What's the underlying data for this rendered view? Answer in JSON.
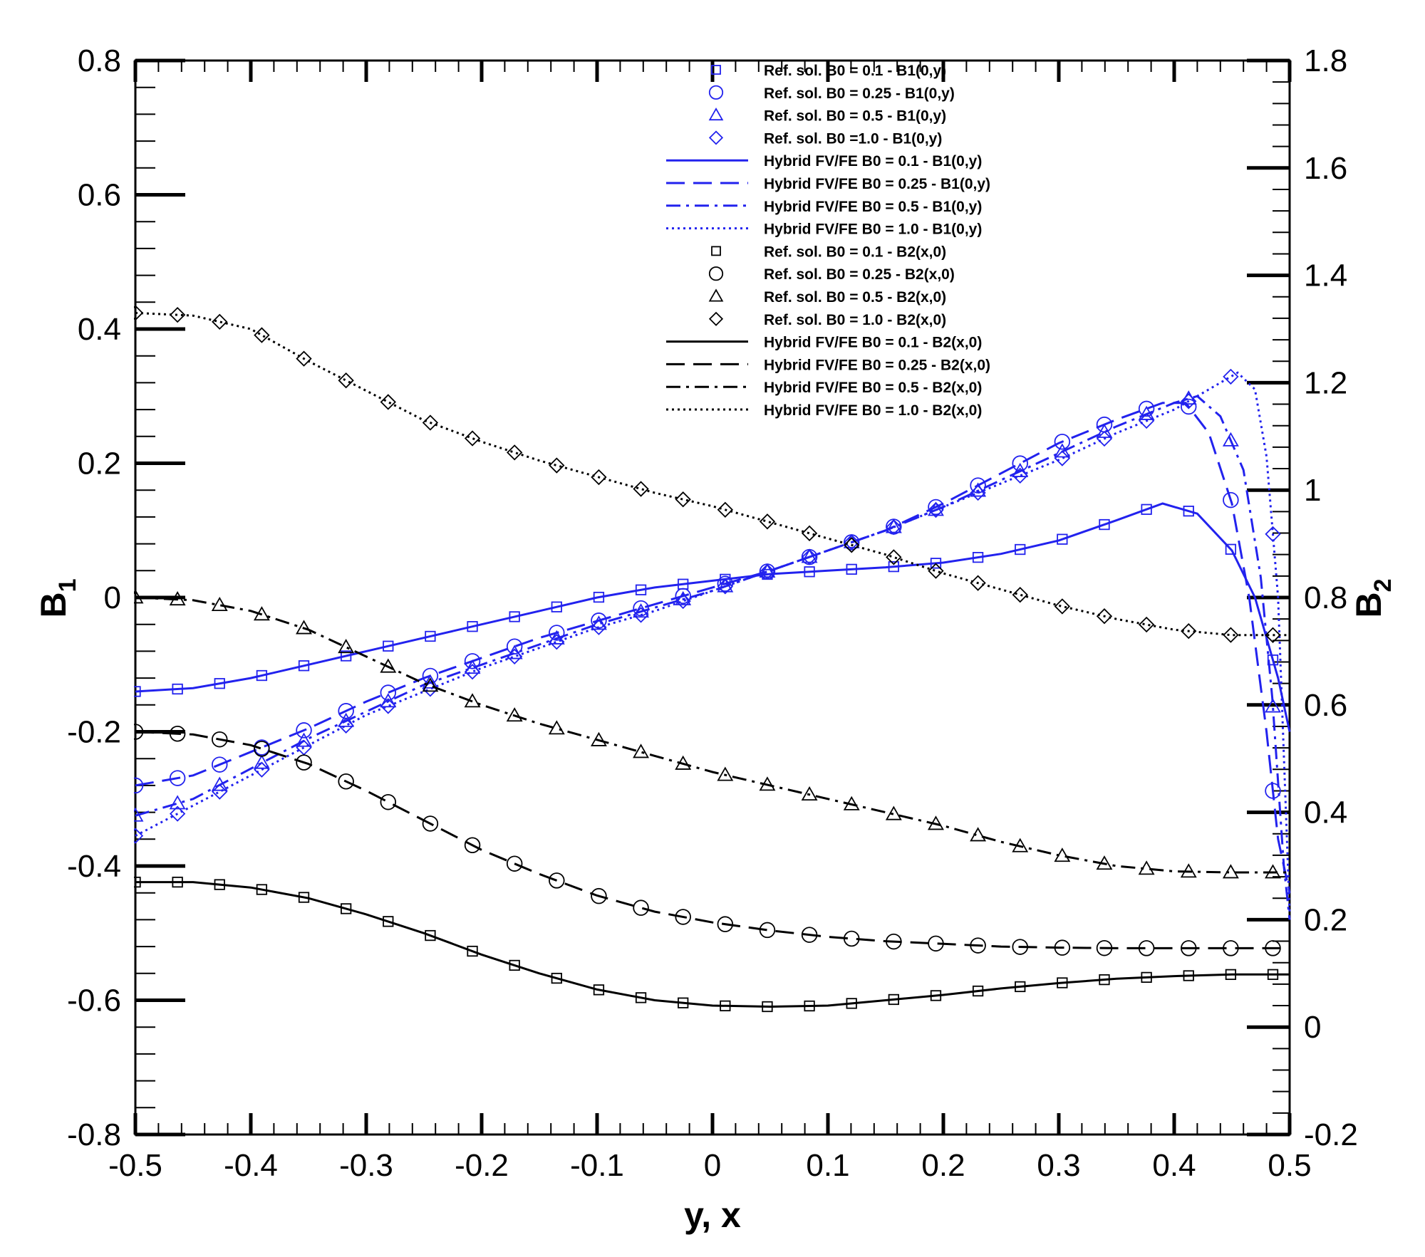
{
  "chart_data": {
    "type": "line",
    "xlabel": "y, x",
    "ylabel_left": "B1",
    "ylabel_right": "B2",
    "xlim": [
      -0.5,
      0.5
    ],
    "ylim_left": [
      -0.8,
      0.8
    ],
    "ylim_right": [
      -0.2,
      1.8
    ],
    "x_ticks": [
      "-0.5",
      "-0.4",
      "-0.3",
      "-0.2",
      "-0.1",
      "0",
      "0.1",
      "0.2",
      "0.3",
      "0.4",
      "0.5"
    ],
    "y_left_ticks": [
      "-0.8",
      "-0.6",
      "-0.4",
      "-0.2",
      "0",
      "0.2",
      "0.4",
      "0.6",
      "0.8"
    ],
    "y_right_ticks": [
      "-0.2",
      "0",
      "0.2",
      "0.4",
      "0.6",
      "0.8",
      "1",
      "1.2",
      "1.4",
      "1.6",
      "1.8"
    ],
    "colors": {
      "blue": "#2222ee",
      "black": "#000000"
    },
    "legend": [
      {
        "label": "Ref. sol. B0 = 0.1 -  B1(0,y)",
        "color": "#2222ee",
        "marker": "square"
      },
      {
        "label": "Ref. sol. B0 = 0.25 -  B1(0,y)",
        "color": "#2222ee",
        "marker": "circle"
      },
      {
        "label": "Ref. sol. B0 = 0.5 -  B1(0,y)",
        "color": "#2222ee",
        "marker": "triangle"
      },
      {
        "label": "Ref. sol. B0 =1.0 -  B1(0,y)",
        "color": "#2222ee",
        "marker": "diamond"
      },
      {
        "label": "Hybrid FV/FE B0 = 0.1 -  B1(0,y)",
        "color": "#2222ee",
        "line": "solid"
      },
      {
        "label": "Hybrid FV/FE B0 = 0.25 -  B1(0,y)",
        "color": "#2222ee",
        "line": "dash"
      },
      {
        "label": "Hybrid FV/FE B0 = 0.5 -  B1(0,y)",
        "color": "#2222ee",
        "line": "dashdot"
      },
      {
        "label": "Hybrid FV/FE B0 = 1.0 -  B1(0,y)",
        "color": "#2222ee",
        "line": "dot"
      },
      {
        "label": "Ref. sol. B0 = 0.1 -  B2(x,0)",
        "color": "#000000",
        "marker": "square"
      },
      {
        "label": "Ref. sol. B0 = 0.25 -  B2(x,0)",
        "color": "#000000",
        "marker": "circle"
      },
      {
        "label": "Ref. sol. B0 = 0.5 -  B2(x,0)",
        "color": "#000000",
        "marker": "triangle"
      },
      {
        "label": "Ref. sol. B0 = 1.0 -  B2(x,0)",
        "color": "#000000",
        "marker": "diamond"
      },
      {
        "label": "Hybrid FV/FE B0 = 0.1 -  B2(x,0)",
        "color": "#000000",
        "line": "solid"
      },
      {
        "label": "Hybrid FV/FE B0 = 0.25 -  B2(x,0)",
        "color": "#000000",
        "line": "dash"
      },
      {
        "label": "Hybrid FV/FE B0 = 0.5 -  B2(x,0)",
        "color": "#000000",
        "line": "dashdot"
      },
      {
        "label": "Hybrid FV/FE B0 = 1.0 -  B2(x,0)",
        "color": "#000000",
        "line": "dot"
      }
    ],
    "series": [
      {
        "name": "Hybrid FV/FE B0 = 0.1 - B1(0,y)",
        "axis": "left",
        "color": "#2222ee",
        "line": "solid",
        "marker": "square",
        "x": [
          -0.5,
          -0.45,
          -0.4,
          -0.35,
          -0.3,
          -0.25,
          -0.2,
          -0.15,
          -0.1,
          -0.05,
          0,
          0.05,
          0.1,
          0.15,
          0.2,
          0.25,
          0.3,
          0.35,
          0.39,
          0.42,
          0.45,
          0.47,
          0.49,
          0.5
        ],
        "y": [
          -0.14,
          -0.135,
          -0.12,
          -0.1,
          -0.08,
          -0.06,
          -0.04,
          -0.02,
          0.0,
          0.015,
          0.025,
          0.035,
          0.04,
          0.045,
          0.052,
          0.065,
          0.085,
          0.115,
          0.14,
          0.125,
          0.07,
          0.0,
          -0.12,
          -0.2
        ]
      },
      {
        "name": "Hybrid FV/FE B0 = 0.25 - B1(0,y)",
        "axis": "left",
        "color": "#2222ee",
        "line": "dash",
        "marker": "circle",
        "x": [
          -0.5,
          -0.45,
          -0.4,
          -0.35,
          -0.3,
          -0.25,
          -0.2,
          -0.15,
          -0.1,
          -0.05,
          0,
          0.05,
          0.1,
          0.15,
          0.2,
          0.25,
          0.3,
          0.35,
          0.39,
          0.41,
          0.43,
          0.45,
          0.465,
          0.48,
          0.49,
          0.5
        ],
        "y": [
          -0.28,
          -0.265,
          -0.23,
          -0.195,
          -0.155,
          -0.12,
          -0.09,
          -0.06,
          -0.035,
          -0.01,
          0.015,
          0.04,
          0.07,
          0.1,
          0.14,
          0.185,
          0.23,
          0.265,
          0.29,
          0.29,
          0.245,
          0.14,
          0.0,
          -0.2,
          -0.36,
          -0.44
        ]
      },
      {
        "name": "Hybrid FV/FE B0 = 0.5 - B1(0,y)",
        "axis": "left",
        "color": "#2222ee",
        "line": "dashdot",
        "marker": "triangle",
        "x": [
          -0.5,
          -0.45,
          -0.4,
          -0.35,
          -0.3,
          -0.25,
          -0.2,
          -0.15,
          -0.1,
          -0.05,
          0,
          0.05,
          0.1,
          0.15,
          0.2,
          0.25,
          0.3,
          0.35,
          0.4,
          0.42,
          0.44,
          0.46,
          0.475,
          0.485,
          0.495,
          0.5
        ],
        "y": [
          -0.325,
          -0.3,
          -0.255,
          -0.21,
          -0.17,
          -0.13,
          -0.1,
          -0.07,
          -0.04,
          -0.015,
          0.01,
          0.04,
          0.07,
          0.1,
          0.135,
          0.175,
          0.215,
          0.255,
          0.29,
          0.3,
          0.27,
          0.19,
          0.03,
          -0.15,
          -0.4,
          -0.48
        ]
      },
      {
        "name": "Hybrid FV/FE B0 = 1.0 - B1(0,y)",
        "axis": "left",
        "color": "#2222ee",
        "line": "dot",
        "marker": "diamond",
        "x": [
          -0.5,
          -0.45,
          -0.4,
          -0.35,
          -0.3,
          -0.25,
          -0.2,
          -0.15,
          -0.1,
          -0.05,
          0,
          0.05,
          0.1,
          0.15,
          0.2,
          0.25,
          0.3,
          0.35,
          0.4,
          0.43,
          0.455,
          0.47,
          0.48,
          0.49,
          0.5
        ],
        "y": [
          -0.355,
          -0.31,
          -0.265,
          -0.22,
          -0.175,
          -0.14,
          -0.105,
          -0.075,
          -0.045,
          -0.02,
          0.01,
          0.04,
          0.07,
          0.1,
          0.135,
          0.17,
          0.205,
          0.245,
          0.28,
          0.31,
          0.335,
          0.31,
          0.21,
          0.0,
          -0.47
        ]
      },
      {
        "name": "Hybrid FV/FE B0 = 0.1 - B2(x,0)",
        "axis": "right",
        "color": "#000000",
        "line": "solid",
        "marker": "square",
        "x": [
          -0.5,
          -0.45,
          -0.4,
          -0.35,
          -0.3,
          -0.25,
          -0.2,
          -0.15,
          -0.1,
          -0.05,
          0,
          0.05,
          0.1,
          0.15,
          0.2,
          0.25,
          0.3,
          0.35,
          0.4,
          0.45,
          0.5
        ],
        "y": [
          0.27,
          0.27,
          0.26,
          0.24,
          0.21,
          0.175,
          0.135,
          0.1,
          0.07,
          0.05,
          0.04,
          0.038,
          0.04,
          0.05,
          0.06,
          0.072,
          0.082,
          0.09,
          0.095,
          0.098,
          0.098
        ]
      },
      {
        "name": "Hybrid FV/FE B0 = 0.25 - B2(x,0)",
        "axis": "right",
        "color": "#000000",
        "line": "dash",
        "marker": "circle",
        "x": [
          -0.5,
          -0.45,
          -0.4,
          -0.35,
          -0.3,
          -0.25,
          -0.2,
          -0.15,
          -0.1,
          -0.05,
          0,
          0.05,
          0.1,
          0.15,
          0.2,
          0.25,
          0.3,
          0.35,
          0.4,
          0.45,
          0.5
        ],
        "y": [
          0.55,
          0.545,
          0.525,
          0.49,
          0.44,
          0.385,
          0.33,
          0.285,
          0.245,
          0.215,
          0.195,
          0.18,
          0.168,
          0.16,
          0.155,
          0.15,
          0.148,
          0.147,
          0.147,
          0.147,
          0.147
        ]
      },
      {
        "name": "Hybrid FV/FE B0 = 0.5 - B2(x,0)",
        "axis": "right",
        "color": "#000000",
        "line": "dashdot",
        "marker": "triangle",
        "x": [
          -0.5,
          -0.45,
          -0.4,
          -0.35,
          -0.3,
          -0.25,
          -0.2,
          -0.15,
          -0.1,
          -0.05,
          0,
          0.05,
          0.1,
          0.15,
          0.2,
          0.25,
          0.3,
          0.35,
          0.4,
          0.45,
          0.5
        ],
        "y": [
          0.8,
          0.795,
          0.775,
          0.74,
          0.69,
          0.64,
          0.6,
          0.565,
          0.535,
          0.505,
          0.475,
          0.45,
          0.425,
          0.4,
          0.375,
          0.345,
          0.32,
          0.3,
          0.29,
          0.288,
          0.288
        ]
      },
      {
        "name": "Hybrid FV/FE B0 = 1.0 - B2(x,0)",
        "axis": "right",
        "color": "#000000",
        "line": "dot",
        "marker": "diamond",
        "x": [
          -0.5,
          -0.45,
          -0.4,
          -0.35,
          -0.3,
          -0.25,
          -0.2,
          -0.15,
          -0.1,
          -0.05,
          0,
          0.05,
          0.1,
          0.15,
          0.2,
          0.25,
          0.3,
          0.35,
          0.4,
          0.45,
          0.5
        ],
        "y": [
          1.33,
          1.325,
          1.3,
          1.24,
          1.185,
          1.13,
          1.09,
          1.055,
          1.025,
          0.995,
          0.97,
          0.94,
          0.91,
          0.88,
          0.845,
          0.815,
          0.785,
          0.76,
          0.74,
          0.73,
          0.73
        ]
      }
    ]
  }
}
